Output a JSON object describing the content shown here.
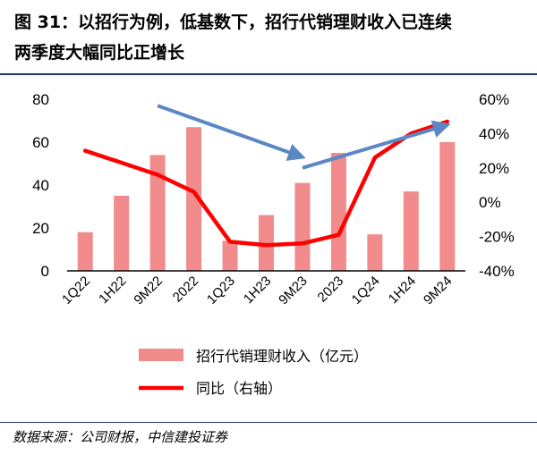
{
  "figure": {
    "title_line1": "图 31：以招行为例，低基数下，招行代销理财收入已连续",
    "title_line2": "两季度大幅同比正增长",
    "source": "数据来源：公司财报，中信建投证券"
  },
  "colors": {
    "bar": "#f28c8c",
    "line": "#ff0000",
    "arrow": "#5b87c4",
    "axis": "#000000",
    "rule": "#1f3a68"
  },
  "chart_data": {
    "type": "bar",
    "categories": [
      "1Q22",
      "1H22",
      "9M22",
      "2022",
      "1Q23",
      "1H23",
      "9M23",
      "2023",
      "1Q24",
      "1H24",
      "9M24"
    ],
    "series": [
      {
        "name": "招行代销理财收入（亿元）",
        "type": "bar",
        "axis": "left",
        "values": [
          18,
          35,
          54,
          67,
          14,
          26,
          41,
          55,
          17,
          37,
          60
        ]
      },
      {
        "name": "同比（右轴）",
        "type": "line",
        "axis": "right",
        "values": [
          30,
          23,
          16,
          6,
          -23,
          -25,
          -24,
          -19,
          26,
          40,
          47
        ]
      }
    ],
    "y_left": {
      "ticks": [
        "0",
        "20",
        "40",
        "60",
        "80"
      ],
      "ylim": [
        0,
        80
      ]
    },
    "y_right": {
      "ticks": [
        "-40%",
        "-20%",
        "0%",
        "20%",
        "40%",
        "60%"
      ],
      "ylim": [
        -40,
        60
      ]
    },
    "annotations": [
      {
        "type": "arrow",
        "from": {
          "category": "9M22",
          "left_value": 77
        },
        "to": {
          "category": "9M23",
          "left_value": 53
        }
      },
      {
        "type": "arrow",
        "from": {
          "category": "9M23",
          "left_value": 48
        },
        "to": {
          "category": "9M24",
          "left_value": 68
        }
      }
    ],
    "grid": false,
    "legend": "bottom"
  }
}
